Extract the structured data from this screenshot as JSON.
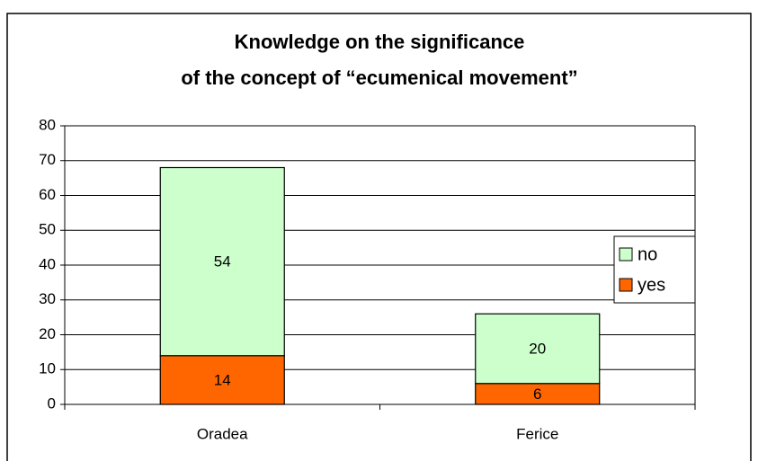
{
  "chart_data": {
    "type": "stacked_bar",
    "title": [
      "Knowledge on the significance",
      "of the concept of “ecumenical movement”"
    ],
    "categories": [
      "Oradea",
      "Ferice"
    ],
    "series": [
      {
        "name": "yes",
        "color": "#ff6600",
        "values": [
          14,
          6
        ]
      },
      {
        "name": "no",
        "color": "#ccffcc",
        "values": [
          54,
          20
        ]
      }
    ],
    "ylim": [
      0,
      80
    ],
    "yticks": [
      0,
      10,
      20,
      30,
      40,
      50,
      60,
      70,
      80
    ],
    "grid": true,
    "legend": "right"
  }
}
